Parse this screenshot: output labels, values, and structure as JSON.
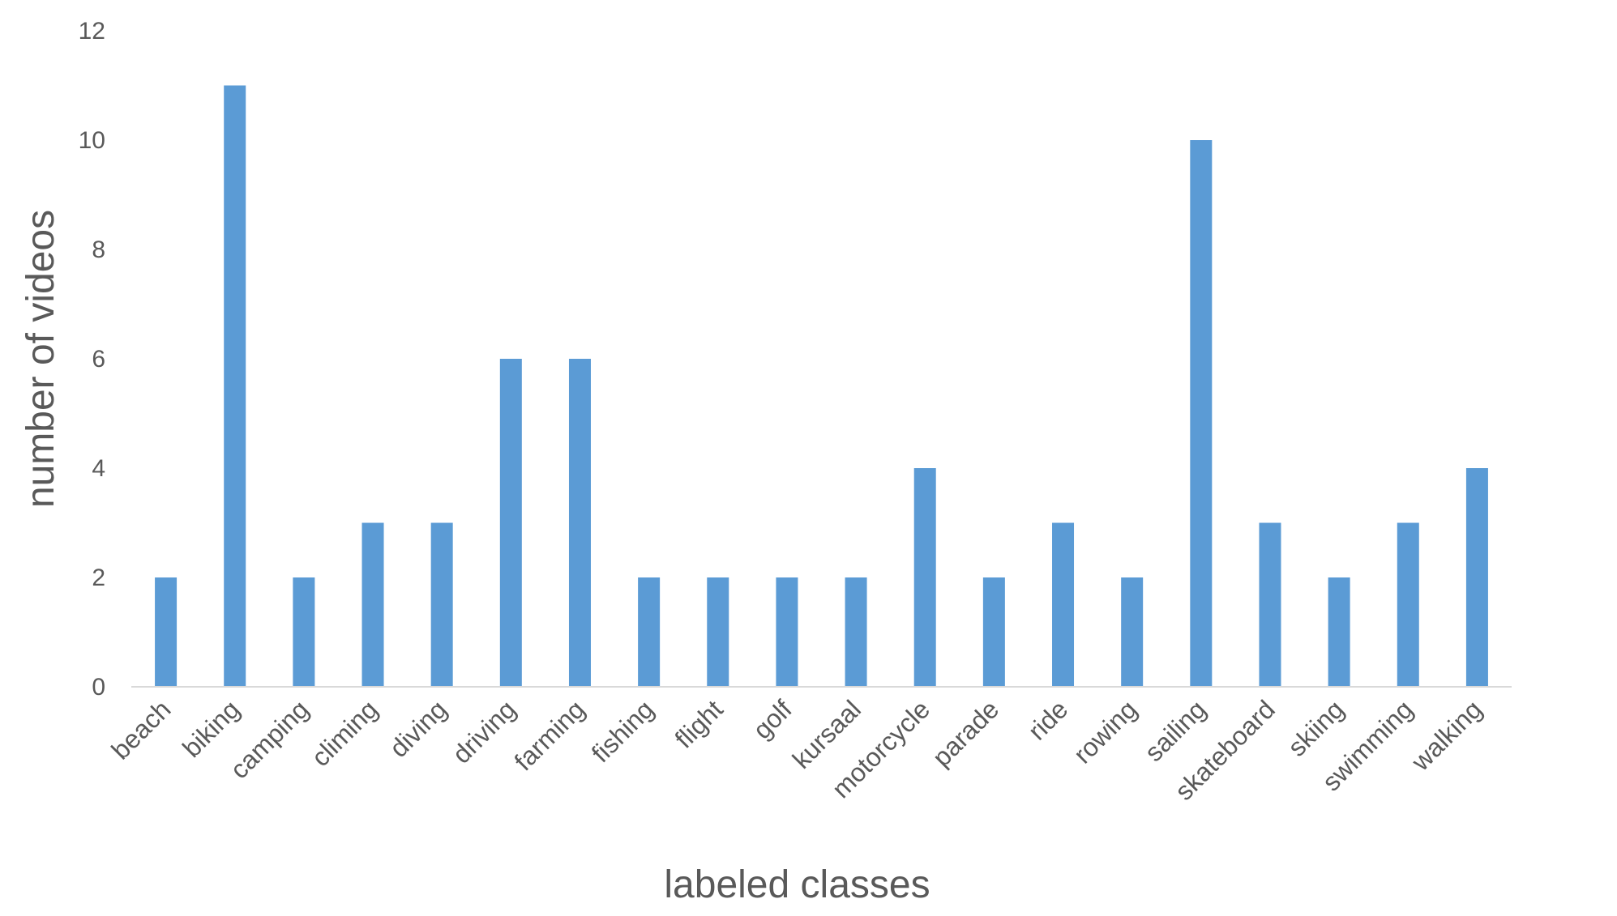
{
  "chart_data": {
    "type": "bar",
    "title": "",
    "xlabel": "labeled classes",
    "ylabel": "number of videos",
    "ylim": [
      0,
      12
    ],
    "yticks": [
      0,
      2,
      4,
      6,
      8,
      10,
      12
    ],
    "grid": false,
    "legend": "none",
    "bar_color": "#5B9BD5",
    "categories": [
      "beach",
      "biking",
      "camping",
      "climing",
      "diving",
      "driving",
      "farming",
      "fishing",
      "flight",
      "golf",
      "kursaal",
      "motorcycle",
      "parade",
      "ride",
      "rowing",
      "sailing",
      "skateboard",
      "skiing",
      "swimming",
      "walking"
    ],
    "values": [
      2,
      11,
      2,
      3,
      3,
      6,
      6,
      2,
      2,
      2,
      2,
      4,
      2,
      3,
      2,
      10,
      3,
      2,
      3,
      4
    ]
  }
}
